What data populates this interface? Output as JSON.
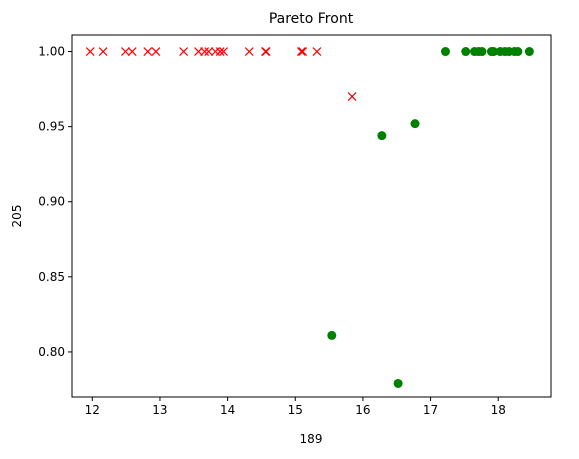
{
  "chart_data": {
    "type": "scatter",
    "title": "Pareto Front",
    "xlabel": "189",
    "ylabel": "205",
    "xlim": [
      11.7,
      18.78
    ],
    "ylim": [
      0.77,
      1.011
    ],
    "xticks": [
      12,
      13,
      14,
      15,
      16,
      17,
      18
    ],
    "yticks": [
      0.8,
      0.85,
      0.9,
      0.95,
      1.0
    ],
    "ytick_labels": [
      "0.80",
      "0.85",
      "0.90",
      "0.95",
      "1.00"
    ],
    "grid": false,
    "legend": "none",
    "series": [
      {
        "marker": "x",
        "color": "#ff0000",
        "points": [
          [
            11.97,
            1.0
          ],
          [
            12.16,
            1.0
          ],
          [
            12.49,
            1.0
          ],
          [
            12.59,
            1.0
          ],
          [
            12.82,
            1.0
          ],
          [
            12.94,
            1.0
          ],
          [
            13.35,
            1.0
          ],
          [
            13.57,
            1.0
          ],
          [
            13.66,
            1.0
          ],
          [
            13.72,
            1.0
          ],
          [
            13.82,
            1.0
          ],
          [
            13.89,
            1.0
          ],
          [
            13.94,
            1.0
          ],
          [
            14.32,
            1.0
          ],
          [
            14.56,
            1.0
          ],
          [
            14.57,
            1.0
          ],
          [
            15.09,
            1.0
          ],
          [
            15.11,
            1.0
          ],
          [
            15.32,
            1.0
          ],
          [
            15.84,
            0.97
          ]
        ]
      },
      {
        "marker": "o",
        "color": "#008000",
        "points": [
          [
            15.54,
            0.811
          ],
          [
            16.28,
            0.944
          ],
          [
            16.52,
            0.779
          ],
          [
            16.77,
            0.952
          ],
          [
            17.22,
            1.0
          ],
          [
            17.52,
            1.0
          ],
          [
            17.65,
            1.0
          ],
          [
            17.71,
            1.0
          ],
          [
            17.76,
            1.0
          ],
          [
            17.9,
            1.0
          ],
          [
            17.93,
            1.0
          ],
          [
            18.03,
            1.0
          ],
          [
            18.1,
            1.0
          ],
          [
            18.16,
            1.0
          ],
          [
            18.24,
            1.0
          ],
          [
            18.29,
            1.0
          ],
          [
            18.46,
            1.0
          ]
        ]
      }
    ]
  }
}
